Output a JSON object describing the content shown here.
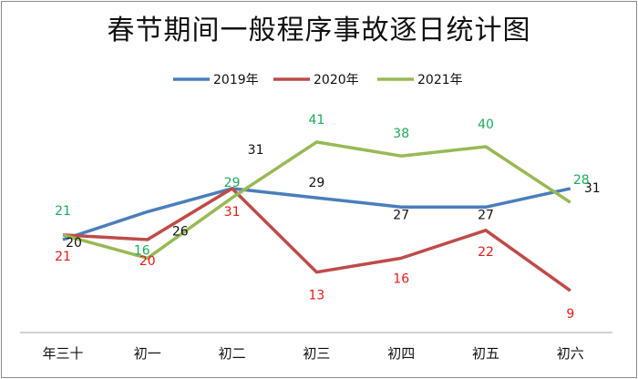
{
  "chart_data": {
    "type": "line",
    "title": "春节期间一般程序事故逐日统计图",
    "categories": [
      "年三十",
      "初一",
      "初二",
      "初三",
      "初四",
      "初五",
      "初六"
    ],
    "series": [
      {
        "name": "2019年",
        "color": "#4a7ebb",
        "label_color": "#111111",
        "values": [
          20,
          26,
          31,
          29,
          27,
          27,
          31
        ]
      },
      {
        "name": "2020年",
        "color": "#be4b48",
        "label_color": "#e8191a",
        "values": [
          21,
          20,
          31,
          13,
          16,
          22,
          9
        ]
      },
      {
        "name": "2021年",
        "color": "#98b954",
        "label_color": "#1aab5a",
        "values": [
          21,
          16,
          29,
          41,
          38,
          40,
          28
        ]
      }
    ],
    "xlabel": "",
    "ylabel": "",
    "ylim": [
      0,
      44
    ],
    "grid": false,
    "legend": "top-center"
  }
}
